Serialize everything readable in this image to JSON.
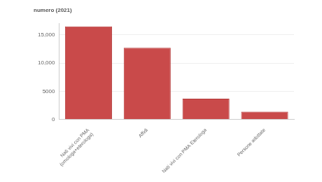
{
  "chart_data": {
    "type": "bar",
    "title": "numero (2021)",
    "categories": [
      "Nati vivi con PMA (omologa+eterologa)",
      "Affidi",
      "Nati vivi con PMA Eterologa",
      "Persone adottate"
    ],
    "values": [
      16500,
      12700,
      3700,
      1400
    ],
    "color": "#c94a4a",
    "ylim": [
      0,
      17000
    ],
    "yticks": [
      0,
      5000,
      {
        "value": 10000,
        "label": "10,000"
      },
      {
        "value": 15000,
        "label": "15,000"
      }
    ],
    "grid": true
  }
}
